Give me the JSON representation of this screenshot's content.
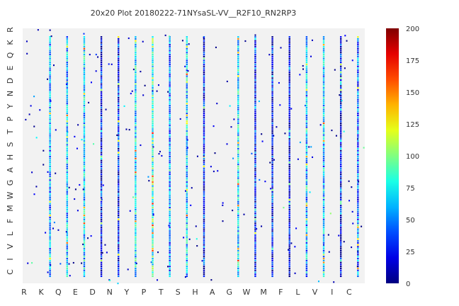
{
  "chart_data": {
    "type": "heatmap",
    "title": "20x20 Plot 20180222-71NYsaSL-VV__R2F10_RN2RP3",
    "x_categories": [
      "R",
      "K",
      "Q",
      "E",
      "D",
      "N",
      "Y",
      "P",
      "T",
      "S",
      "H",
      "A",
      "G",
      "W",
      "M",
      "F",
      "L",
      "V",
      "I",
      "C"
    ],
    "y_categories": [
      "R",
      "K",
      "Q",
      "E",
      "D",
      "N",
      "Y",
      "P",
      "T",
      "S",
      "H",
      "A",
      "G",
      "W",
      "M",
      "F",
      "L",
      "V",
      "I",
      "C"
    ],
    "colorbar": {
      "colormap": "jet",
      "range": [
        0,
        200
      ],
      "ticks": [
        0,
        25,
        50,
        75,
        100,
        125,
        150,
        175,
        200
      ]
    },
    "dense_columns": [
      {
        "x": "K",
        "intensity": 55
      },
      {
        "x": "Q",
        "intensity": 62
      },
      {
        "x": "E",
        "intensity": 68
      },
      {
        "x": "D",
        "intensity": 22
      },
      {
        "x": "N",
        "intensity": 30
      },
      {
        "x": "Y",
        "intensity": 72
      },
      {
        "x": "P",
        "intensity": 85
      },
      {
        "x": "T",
        "intensity": 48
      },
      {
        "x": "S",
        "intensity": 65
      },
      {
        "x": "H",
        "intensity": 28
      },
      {
        "x": "G",
        "intensity": 70
      },
      {
        "x": "W",
        "intensity": 30
      },
      {
        "x": "M",
        "intensity": 25
      },
      {
        "x": "F",
        "intensity": 15
      },
      {
        "x": "L",
        "intensity": 58
      },
      {
        "x": "V",
        "intensity": 60
      },
      {
        "x": "I",
        "intensity": 20
      },
      {
        "x": "C",
        "intensity": 45
      }
    ],
    "background_color": "#f2f2f2",
    "grid": false,
    "legend": "colorbar-right"
  }
}
